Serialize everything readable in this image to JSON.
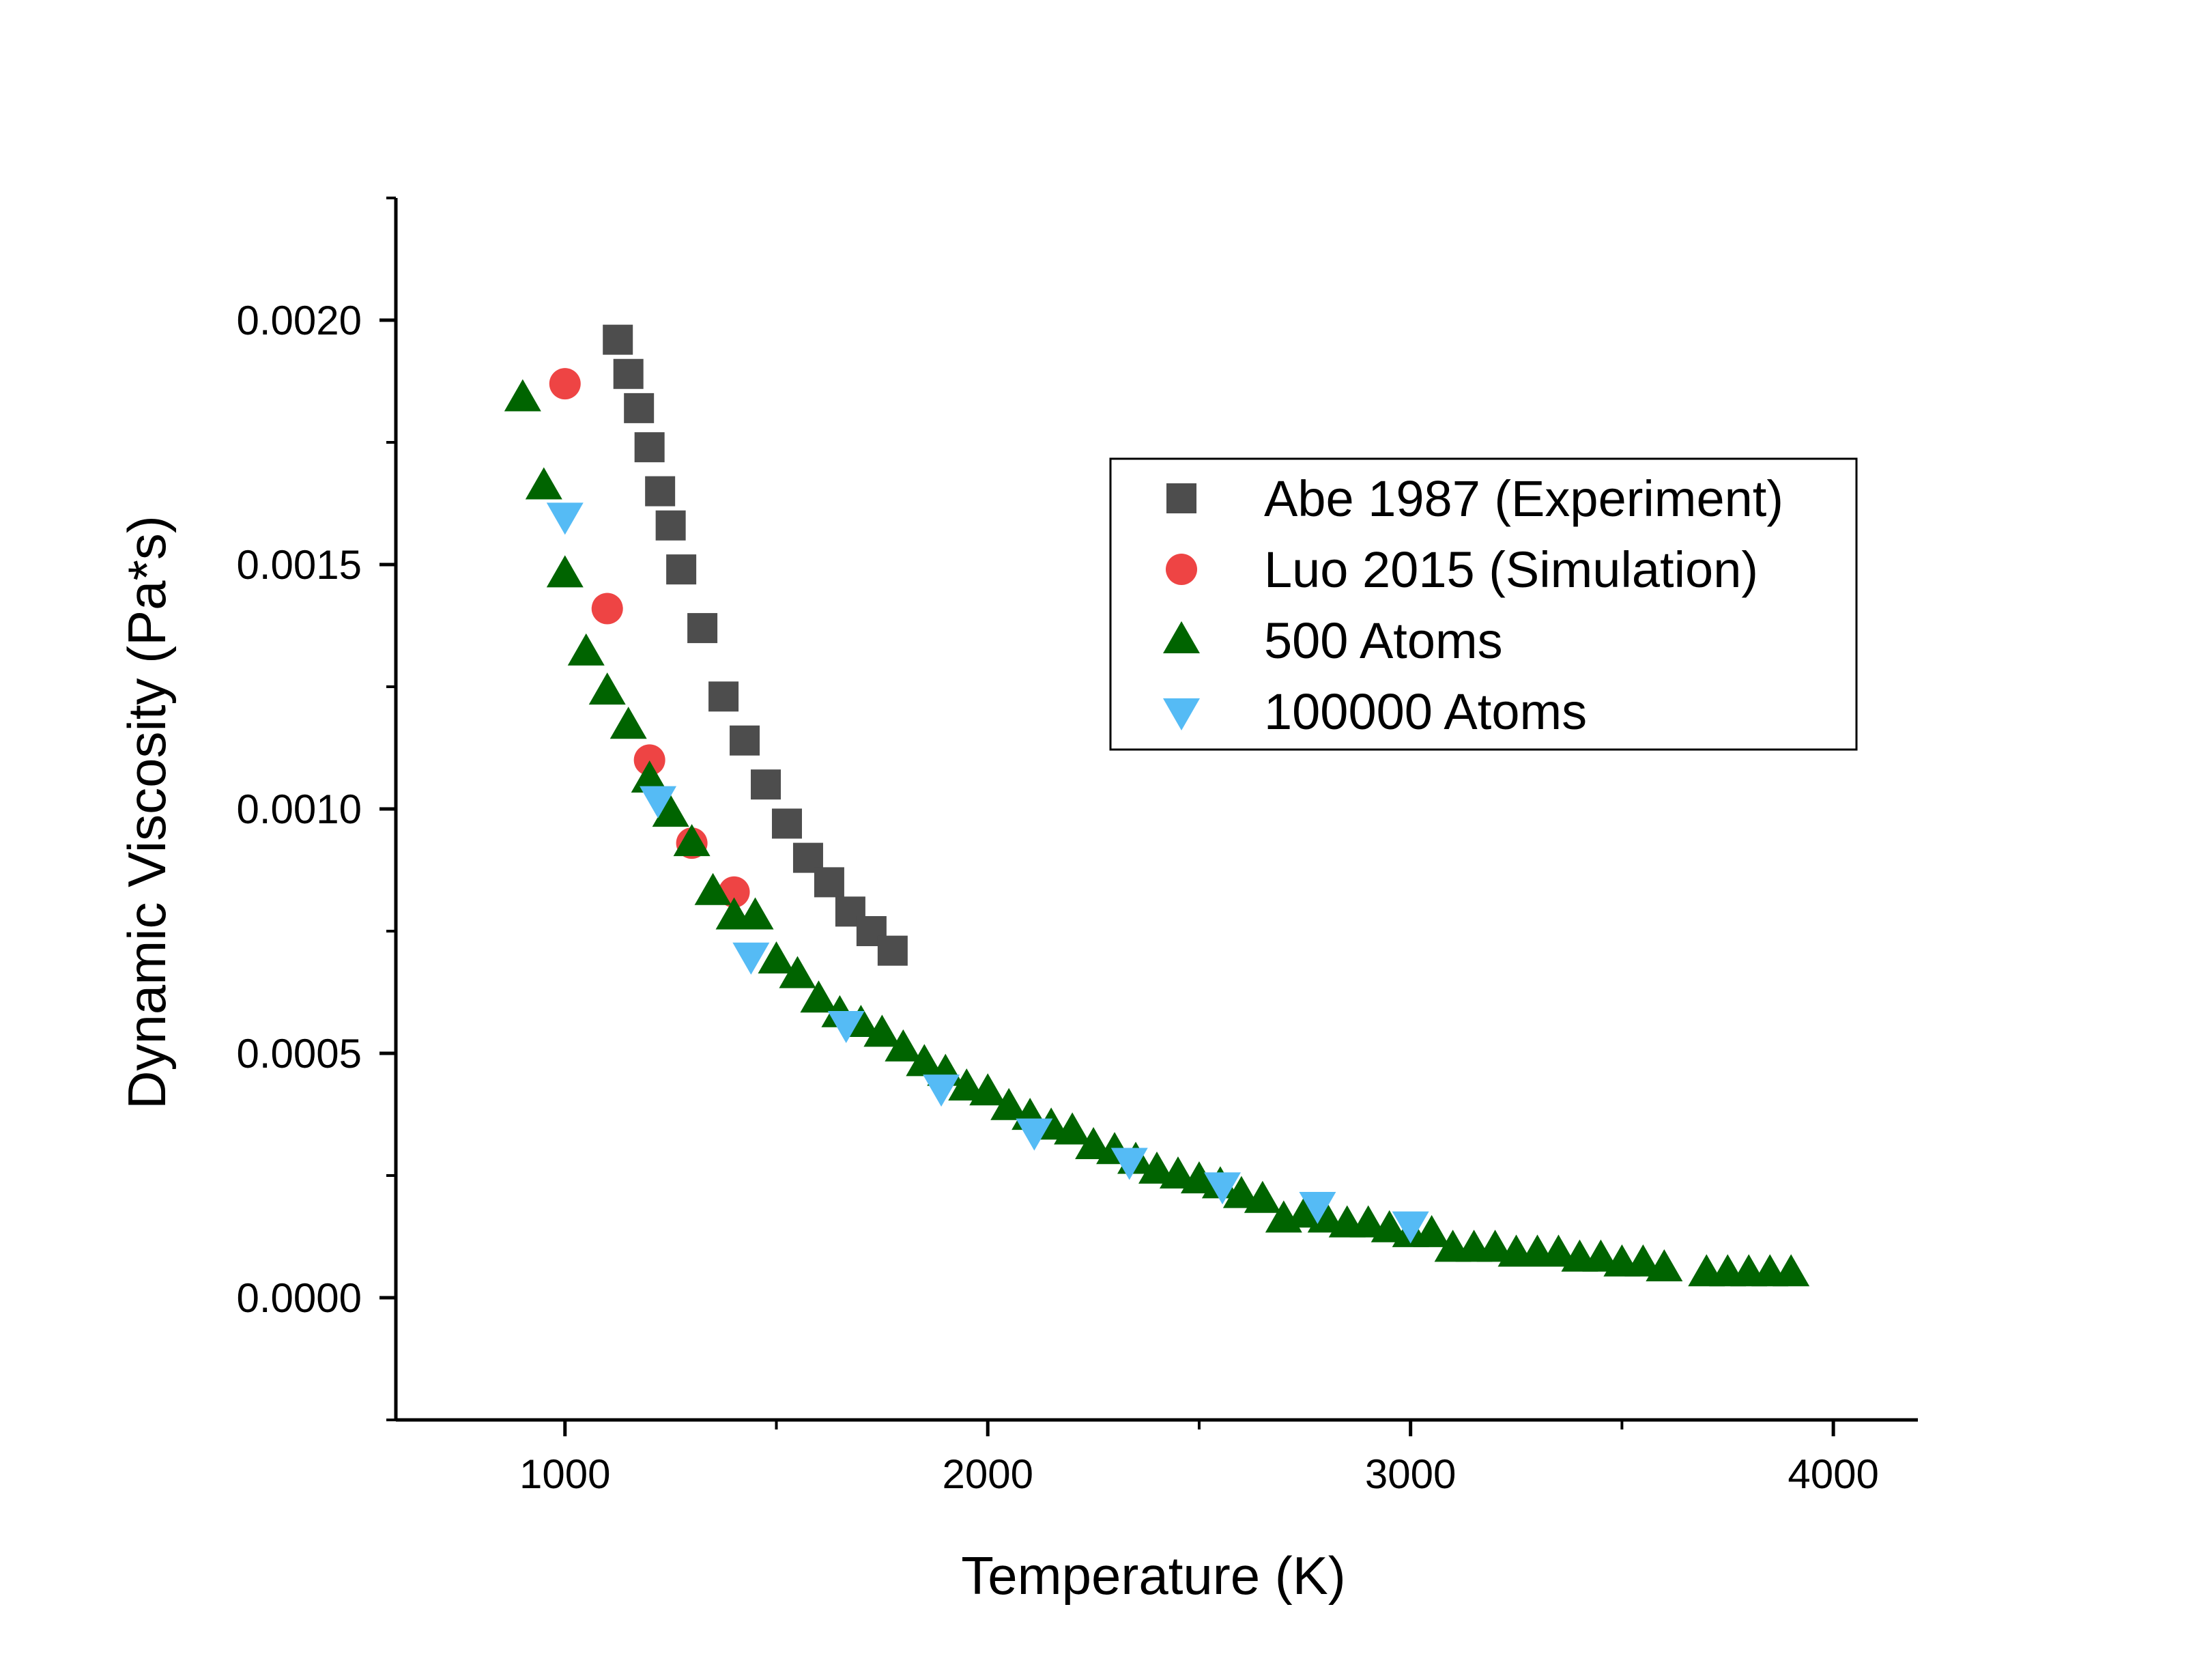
{
  "chart_data": {
    "type": "scatter",
    "title": "",
    "xlabel": "Temperature (K)",
    "ylabel": "Dynamic Viscosity (Pa*s)",
    "xlim": [
      600,
      4200
    ],
    "ylim": [
      -0.00025,
      0.00225
    ],
    "xticks": [
      1000,
      2000,
      3000,
      4000
    ],
    "xtick_labels": [
      "1000",
      "2000",
      "3000",
      "4000"
    ],
    "yticks": [
      0.0,
      0.0005,
      0.001,
      0.0015,
      0.002
    ],
    "ytick_labels": [
      "0.0000",
      "0.0005",
      "0.0010",
      "0.0015",
      "0.0020"
    ],
    "grid": false,
    "legend_position": "upper-right",
    "series": [
      {
        "name": "Abe 1987 (Experiment)",
        "marker": "square",
        "color": "#4d4d4d",
        "x": [
          1125,
          1150,
          1175,
          1200,
          1225,
          1250,
          1275,
          1325,
          1375,
          1425,
          1475,
          1525,
          1575,
          1625,
          1675,
          1725,
          1775
        ],
        "y": [
          0.00196,
          0.00189,
          0.00182,
          0.00174,
          0.00165,
          0.00158,
          0.00149,
          0.00137,
          0.00123,
          0.00114,
          0.00105,
          0.00097,
          0.0009,
          0.00085,
          0.00079,
          0.00075,
          0.00071
        ]
      },
      {
        "name": "Luo 2015 (Simulation)",
        "marker": "circle",
        "color": "#ee4444",
        "x": [
          1000,
          1100,
          1200,
          1300,
          1400
        ],
        "y": [
          0.00187,
          0.00141,
          0.0011,
          0.00093,
          0.00083
        ]
      },
      {
        "name": "500 Atoms",
        "marker": "triangle-up",
        "color": "#006400",
        "x": [
          900,
          950,
          1000,
          1050,
          1100,
          1150,
          1200,
          1250,
          1300,
          1350,
          1400,
          1450,
          1500,
          1550,
          1600,
          1650,
          1700,
          1750,
          1800,
          1850,
          1900,
          1950,
          2000,
          2050,
          2100,
          2150,
          2200,
          2250,
          2300,
          2350,
          2400,
          2450,
          2500,
          2550,
          2600,
          2650,
          2700,
          2750,
          2800,
          2850,
          2900,
          2950,
          3000,
          3050,
          3100,
          3150,
          3200,
          3250,
          3300,
          3350,
          3400,
          3450,
          3500,
          3550,
          3600,
          3700,
          3750,
          3800,
          3850,
          3900
        ],
        "y": [
          0.00184,
          0.00166,
          0.00148,
          0.00132,
          0.00124,
          0.00117,
          0.00106,
          0.00099,
          0.00093,
          0.00083,
          0.00078,
          0.00078,
          0.00069,
          0.00066,
          0.00061,
          0.00058,
          0.00056,
          0.00054,
          0.00051,
          0.00048,
          0.00046,
          0.00043,
          0.00042,
          0.00039,
          0.00037,
          0.00035,
          0.00034,
          0.00031,
          0.0003,
          0.00028,
          0.00026,
          0.00025,
          0.00024,
          0.00023,
          0.00021,
          0.0002,
          0.00016,
          0.00017,
          0.00016,
          0.00015,
          0.00015,
          0.00014,
          0.00013,
          0.00013,
          0.0001,
          0.0001,
          0.0001,
          9e-05,
          9e-05,
          9e-05,
          8e-05,
          8e-05,
          7e-05,
          7e-05,
          6e-05,
          5e-05,
          5e-05,
          5e-05,
          5e-05,
          5e-05
        ]
      },
      {
        "name": "100000 Atoms",
        "marker": "triangle-down",
        "color": "#55bbf5",
        "x": [
          1000,
          1220,
          1440,
          1665,
          1890,
          2110,
          2335,
          2555,
          2780,
          3000
        ],
        "y": [
          0.0016,
          0.00102,
          0.0007,
          0.00056,
          0.00043,
          0.00034,
          0.00028,
          0.00023,
          0.00019,
          0.00015
        ]
      }
    ]
  }
}
